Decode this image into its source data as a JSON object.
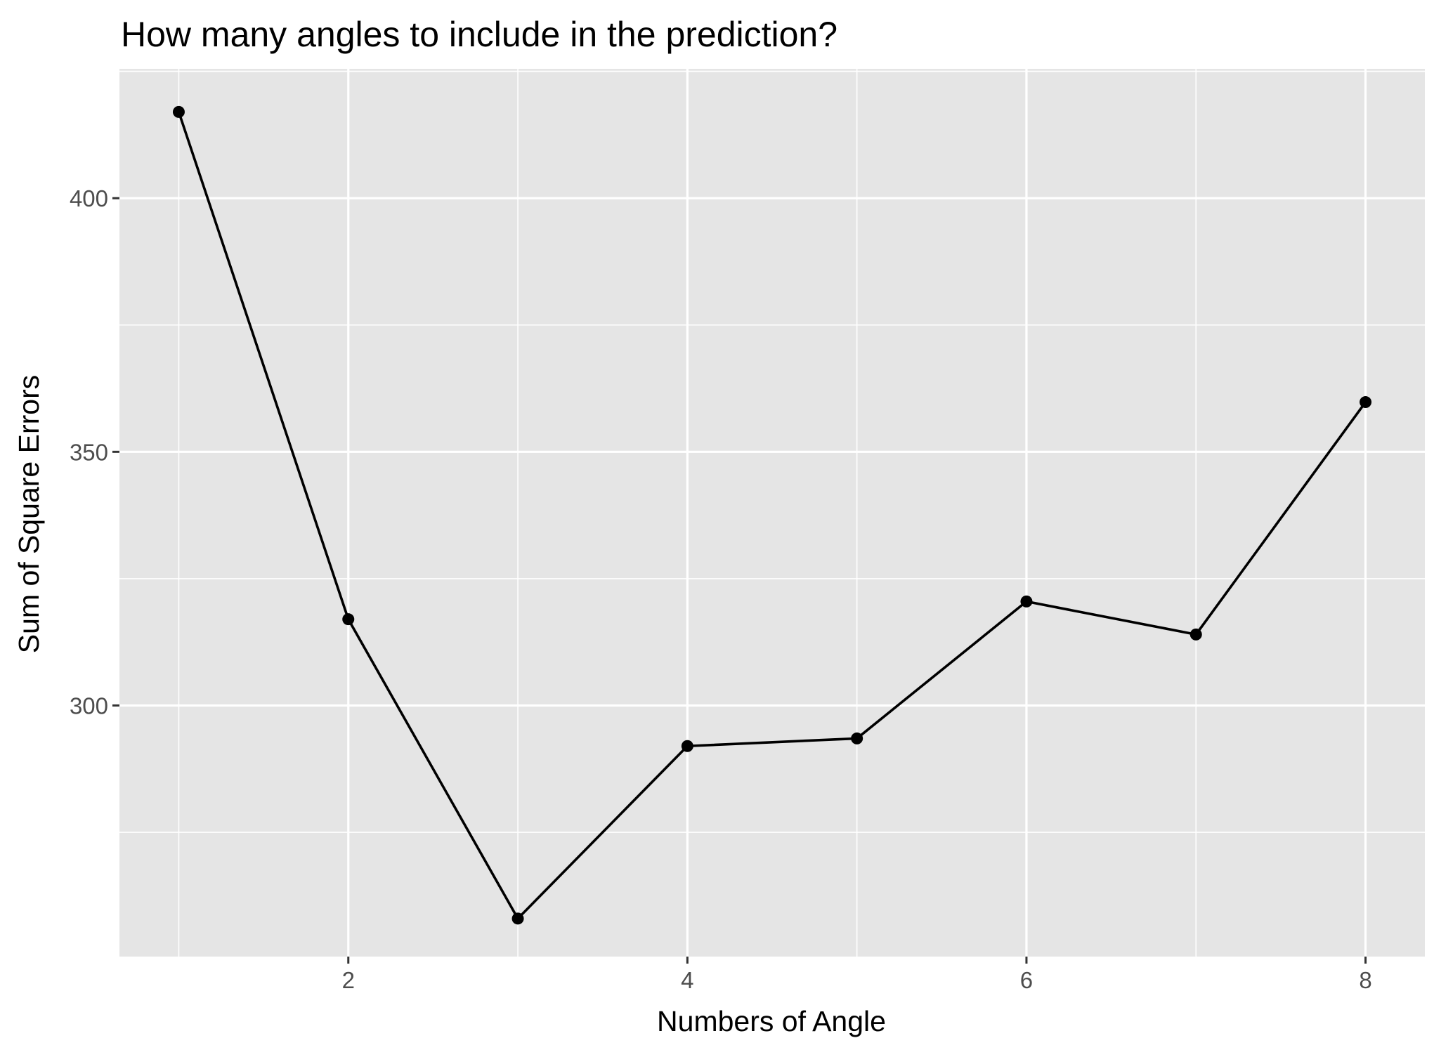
{
  "chart_data": {
    "type": "line",
    "title": "How many angles to include in the prediction?",
    "xlabel": "Numbers of Angle",
    "ylabel": "Sum of Square Errors",
    "x": [
      1,
      2,
      3,
      4,
      5,
      6,
      7,
      8
    ],
    "series": [
      {
        "values": [
          417,
          317,
          258,
          292,
          293.5,
          320.5,
          314,
          359.8
        ]
      }
    ],
    "xlim": [
      0.65,
      8.35
    ],
    "ylim": [
      250.5,
      425.5
    ],
    "xticks": [
      2,
      4,
      6,
      8
    ],
    "xtick_labels": [
      "2",
      "4",
      "6",
      "8"
    ],
    "yticks": [
      300,
      350,
      400
    ],
    "ytick_labels": [
      "300",
      "350",
      "400"
    ],
    "grid": true,
    "legend": "none",
    "colors": {
      "panel_background": "#e5e5e5",
      "grid_line": "#ffffff",
      "series_line": "#000000",
      "point": "#000000",
      "tick_mark": "#333333",
      "tick_label": "#4d4d4d"
    }
  }
}
